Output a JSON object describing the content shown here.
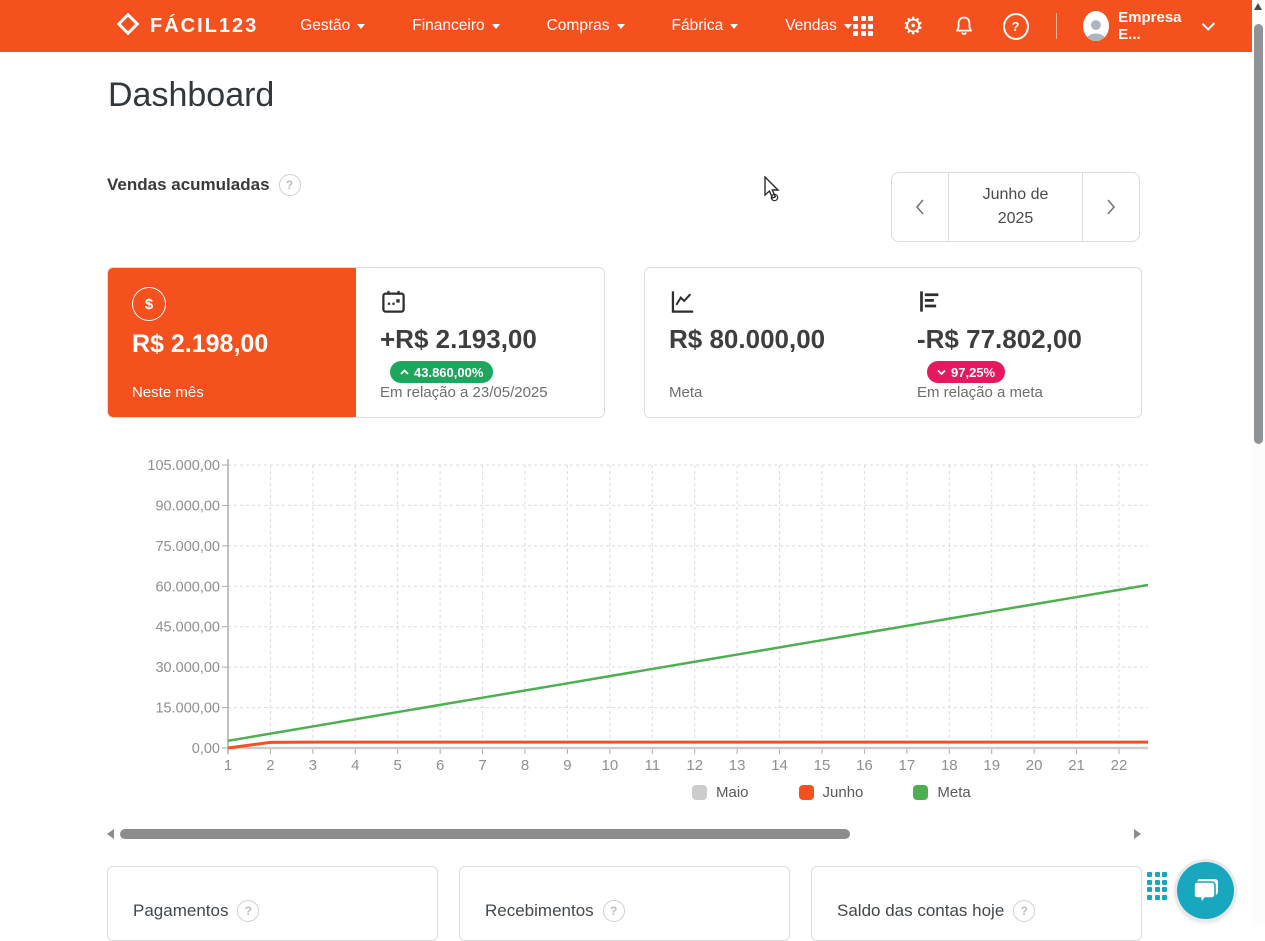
{
  "navbar": {
    "brand": "FÁCIL123",
    "menus": [
      {
        "label": "Gestão"
      },
      {
        "label": "Financeiro"
      },
      {
        "label": "Compras"
      },
      {
        "label": "Fábrica"
      },
      {
        "label": "Vendas"
      }
    ],
    "icons": [
      "apps-icon",
      "gear-icon",
      "bell-icon",
      "help-icon"
    ],
    "user": "Empresa E...",
    "help_glyph": "?",
    "gear_glyph": "⚙"
  },
  "page_title": "Dashboard",
  "sales_section": {
    "title": "Vendas acumuladas",
    "period": {
      "label": "Junho de 2025"
    }
  },
  "stats": {
    "current": {
      "value": "R$ 2.198,00",
      "label": "Neste mês"
    },
    "delta": {
      "value": "+R$ 2.193,00",
      "badge": "43.860,00%",
      "label": "Em relação a 23/05/2025"
    },
    "meta": {
      "value": "R$ 80.000,00",
      "label": "Meta"
    },
    "meta_delta": {
      "value": "-R$ 77.802,00",
      "badge": "97,25%",
      "label": "Em relação a meta"
    }
  },
  "dollar_glyph": "$",
  "chart_data": {
    "type": "line",
    "x": [
      1,
      2,
      3,
      4,
      5,
      6,
      7,
      8,
      9,
      10,
      11,
      12,
      13,
      14,
      15,
      16,
      17,
      18,
      19,
      20,
      21,
      22
    ],
    "ylim": [
      0,
      105000
    ],
    "ytick_values": [
      0,
      15000,
      30000,
      45000,
      60000,
      75000,
      90000,
      105000
    ],
    "yticks": [
      "0,00",
      "15.000,00",
      "30.000,00",
      "45.000,00",
      "60.000,00",
      "75.000,00",
      "90.000,00",
      "105.000,00"
    ],
    "grid": true,
    "legend_position": "bottom",
    "series": [
      {
        "name": "Maio",
        "color": "#CCCCCC",
        "values": [
          5,
          5,
          5,
          5,
          5,
          5,
          5,
          5,
          5,
          5,
          5,
          5,
          5,
          5,
          5,
          5,
          5,
          5,
          5,
          5,
          5,
          5
        ]
      },
      {
        "name": "Junho",
        "color": "#F4511E",
        "values": [
          0,
          2100,
          2198,
          2198,
          2198,
          2198,
          2198,
          2198,
          2198,
          2198,
          2198,
          2198,
          2198,
          2198,
          2198,
          2198,
          2198,
          2198,
          2198,
          2198,
          2198,
          2198
        ]
      },
      {
        "name": "Meta",
        "color": "#4CAF50",
        "values": [
          2666.67,
          5333.33,
          8000,
          10666.67,
          13333.33,
          16000,
          18666.67,
          21333.33,
          24000,
          26666.67,
          29333.33,
          32000,
          34666.67,
          37333.33,
          40000,
          42666.67,
          45333.33,
          48000,
          50666.67,
          53333.33,
          56000,
          58666.67
        ]
      }
    ]
  },
  "bottom_cards": [
    {
      "title": "Pagamentos"
    },
    {
      "title": "Recebimentos"
    },
    {
      "title": "Saldo das contas hoje"
    }
  ],
  "colors": {
    "navbar": "#F4511E",
    "badge_up": "#1DA75D",
    "badge_down": "#E5195F",
    "chat": "#17A7BE",
    "meta_line": "#4CAF50",
    "junho_line": "#F4511E",
    "maio_line": "#CCCCCC"
  }
}
